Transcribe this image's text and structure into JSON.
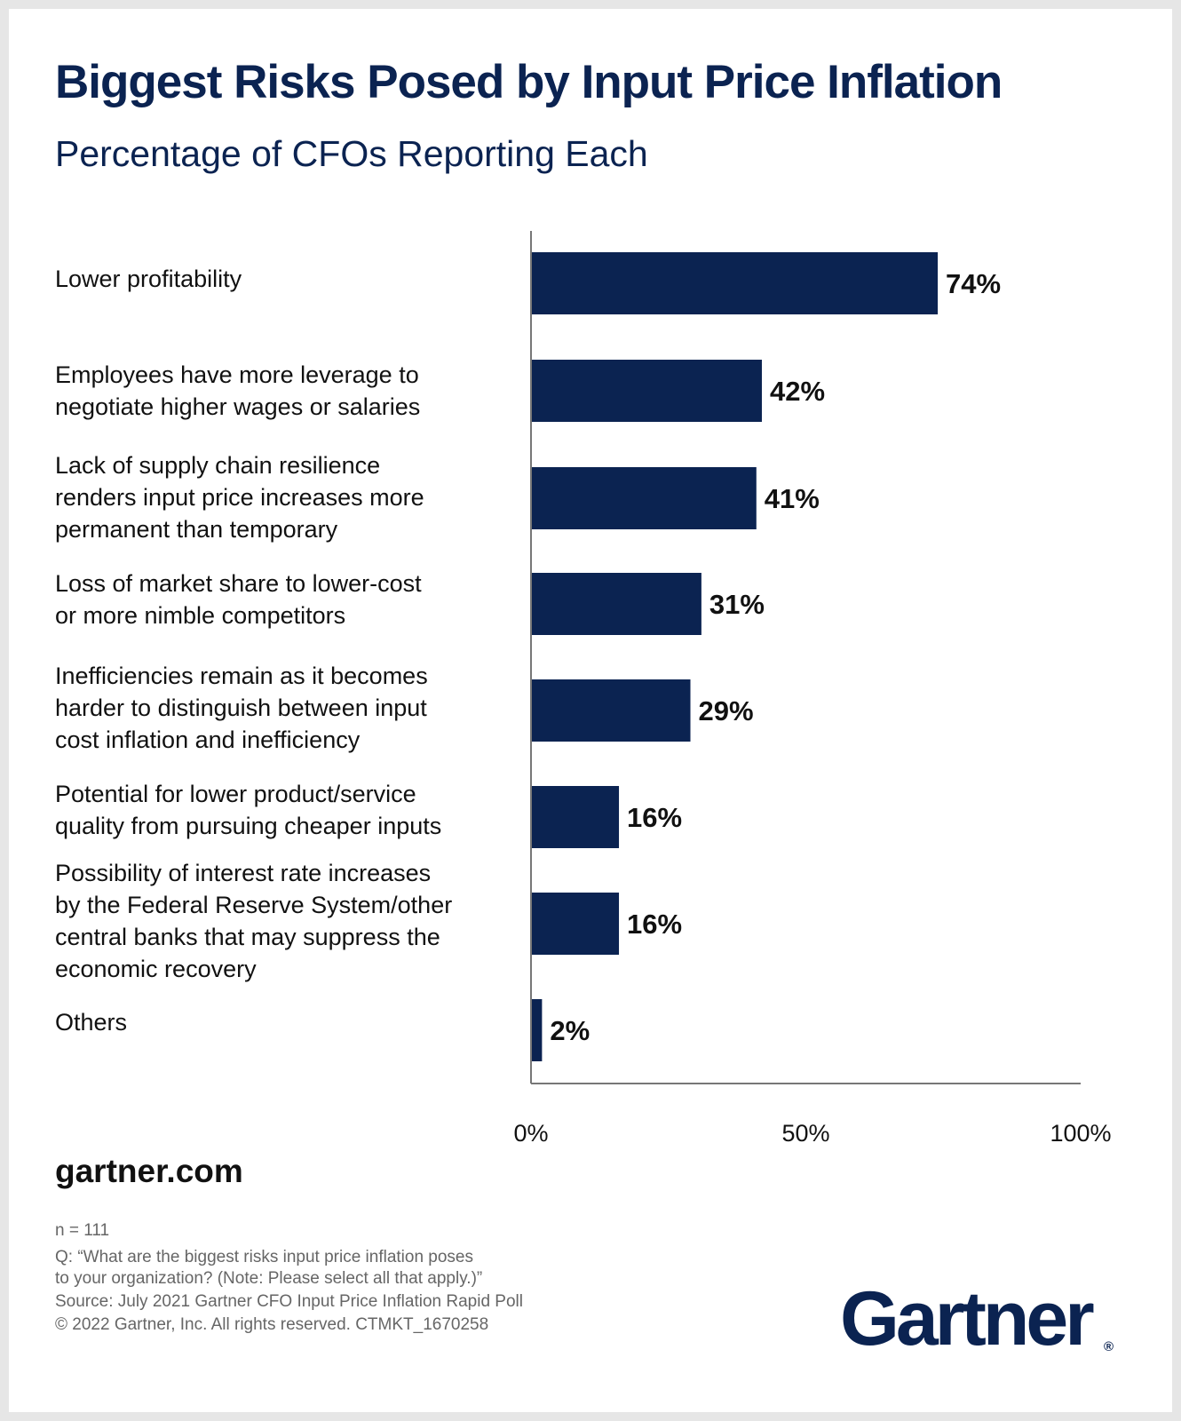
{
  "chart_data": {
    "type": "bar",
    "orientation": "horizontal",
    "title": "Biggest Risks Posed by Input Price Inflation",
    "subtitle": "Percentage of CFOs Reporting Each",
    "categories": [
      "Lower profitability",
      "Employees have more leverage to\nnegotiate higher wages or salaries",
      "Lack of supply chain resilience\nrenders input price increases more\npermanent than temporary",
      "Loss of market share to lower-cost\nor more nimble competitors",
      "Inefficiencies remain as it becomes\nharder to distinguish between input\ncost inflation and inefficiency",
      "Potential for lower product/service\nquality from pursuing cheaper inputs",
      "Possibility of interest rate increases\nby the Federal Reserve System/other\ncentral banks that may suppress the\neconomic recovery",
      "Others"
    ],
    "values": [
      74,
      42,
      41,
      31,
      29,
      16,
      16,
      2
    ],
    "value_labels": [
      "74%",
      "42%",
      "41%",
      "31%",
      "29%",
      "16%",
      "16%",
      "2%"
    ],
    "xlim": [
      0,
      100
    ],
    "xticks": [
      0,
      50,
      100
    ],
    "xtick_labels": [
      "0%",
      "50%",
      "100%"
    ],
    "xlabel": "",
    "ylabel": "",
    "grid": false,
    "bar_color": "#0b2351"
  },
  "footer": {
    "website": "gartner.com",
    "sample": "n = 111",
    "question": "Q: “What are the biggest risks input price inflation poses\nto your organization? (Note: Please select all that apply.)”",
    "source": "Source: July 2021 Gartner CFO Input Price Inflation Rapid Poll",
    "copyright": "© 2022 Gartner, Inc. All rights reserved. CTMKT_1670258"
  },
  "brand": {
    "logo_text": "Gartner",
    "registered_mark": "®"
  }
}
